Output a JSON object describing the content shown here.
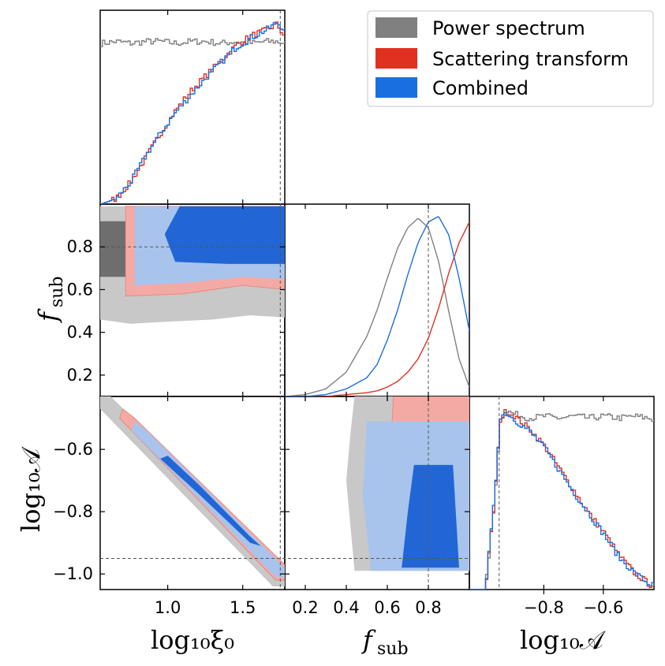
{
  "chart_data": {
    "type": "corner",
    "parameters": [
      "log10xi0",
      "f_sub",
      "log10A"
    ],
    "parameter_labels": {
      "log10xi0": "log₁₀ξ₀",
      "f_sub": "f",
      "f_sub_sub": "sub",
      "log10A": "log₁₀𝒜"
    },
    "true_values": {
      "log10xi0": 1.75,
      "f_sub": 0.8,
      "log10A": -0.95
    },
    "ranges": {
      "log10xi0": [
        0.55,
        1.78
      ],
      "f_sub": [
        0.1,
        1.0
      ],
      "log10A": [
        -1.05,
        -0.43
      ]
    },
    "ticks": {
      "log10xi0": {
        "values": [
          1.0,
          1.5
        ],
        "labels": [
          "1.0",
          "1.5"
        ]
      },
      "f_sub_x": {
        "values": [
          0.2,
          0.4,
          0.6,
          0.8
        ],
        "labels": [
          "0.2",
          "0.4",
          "0.6",
          "0.8"
        ]
      },
      "f_sub_y": {
        "values": [
          0.2,
          0.4,
          0.6,
          0.8
        ],
        "labels": [
          "0.2",
          "0.4",
          "0.6",
          "0.8"
        ]
      },
      "log10A_y": {
        "values": [
          -0.6,
          -0.8,
          -1.0
        ],
        "labels": [
          "−0.6",
          "−0.8",
          "−1.0"
        ]
      },
      "log10A_x": {
        "values": [
          -0.8,
          -0.6
        ],
        "labels": [
          "−0.8",
          "−0.6"
        ]
      }
    },
    "colors": {
      "power": "#808080",
      "scattering": "#e03020",
      "combined": "#1a6fe0",
      "power_dark": "#6e6e6e",
      "power_light": "#c8c8c8",
      "scatter_light": "#f4aaa4",
      "combined_dark": "#2266d6",
      "combined_light": "#a8c4ec"
    },
    "legend": {
      "placement": "top-right",
      "entries": [
        {
          "label": "Power spectrum",
          "color": "#808080"
        },
        {
          "label": "Scattering transform",
          "color": "#e03020"
        },
        {
          "label": "Combined",
          "color": "#1a6fe0"
        }
      ]
    },
    "marginals": {
      "log10xi0": {
        "x": [
          0.55,
          0.65,
          0.75,
          0.85,
          0.95,
          1.05,
          1.15,
          1.25,
          1.35,
          1.45,
          1.55,
          1.65,
          1.72,
          1.78
        ],
        "power": [
          0.85,
          0.86,
          0.85,
          0.86,
          0.86,
          0.85,
          0.86,
          0.86,
          0.85,
          0.86,
          0.85,
          0.86,
          0.86,
          0.85
        ],
        "scattering": [
          0.0,
          0.03,
          0.12,
          0.25,
          0.38,
          0.5,
          0.6,
          0.68,
          0.76,
          0.84,
          0.89,
          0.92,
          0.95,
          0.88
        ],
        "combined": [
          0.0,
          0.03,
          0.12,
          0.26,
          0.38,
          0.49,
          0.58,
          0.67,
          0.75,
          0.83,
          0.88,
          0.92,
          0.96,
          0.92
        ]
      },
      "f_sub": {
        "x": [
          0.1,
          0.2,
          0.3,
          0.4,
          0.5,
          0.55,
          0.6,
          0.65,
          0.7,
          0.75,
          0.8,
          0.85,
          0.9,
          0.95,
          1.0
        ],
        "power": [
          0.0,
          0.01,
          0.04,
          0.13,
          0.32,
          0.46,
          0.63,
          0.79,
          0.9,
          0.95,
          0.9,
          0.72,
          0.45,
          0.2,
          0.05
        ],
        "scattering": [
          0.0,
          0.0,
          0.0,
          0.01,
          0.02,
          0.03,
          0.05,
          0.08,
          0.13,
          0.2,
          0.31,
          0.47,
          0.66,
          0.82,
          0.93
        ],
        "combined": [
          0.0,
          0.0,
          0.01,
          0.04,
          0.1,
          0.17,
          0.3,
          0.46,
          0.65,
          0.82,
          0.93,
          0.96,
          0.86,
          0.63,
          0.35
        ]
      },
      "log10A": {
        "x": [
          -1.05,
          -1.0,
          -0.97,
          -0.95,
          -0.93,
          -0.9,
          -0.85,
          -0.8,
          -0.75,
          -0.7,
          -0.65,
          -0.6,
          -0.55,
          -0.5,
          -0.45,
          -0.43
        ],
        "power": [
          0.0,
          0.0,
          0.45,
          0.9,
          0.95,
          0.93,
          0.91,
          0.92,
          0.91,
          0.92,
          0.91,
          0.92,
          0.91,
          0.92,
          0.91,
          0.9
        ],
        "scattering": [
          0.0,
          0.0,
          0.45,
          0.9,
          0.95,
          0.92,
          0.85,
          0.76,
          0.64,
          0.52,
          0.4,
          0.3,
          0.18,
          0.09,
          0.03,
          0.01
        ],
        "combined": [
          0.0,
          0.0,
          0.47,
          0.92,
          0.94,
          0.9,
          0.84,
          0.75,
          0.63,
          0.51,
          0.4,
          0.29,
          0.17,
          0.09,
          0.03,
          0.02
        ]
      }
    },
    "contours": {
      "fsub_vs_log10xi0": {
        "power": {
          "outer": [
            [
              0.55,
              0.46
            ],
            [
              0.75,
              0.44
            ],
            [
              1.0,
              0.45
            ],
            [
              1.3,
              0.46
            ],
            [
              1.55,
              0.48
            ],
            [
              1.78,
              0.47
            ],
            [
              1.78,
              0.99
            ],
            [
              0.55,
              0.99
            ]
          ],
          "inner": [
            [
              0.55,
              0.66
            ],
            [
              0.82,
              0.66
            ],
            [
              0.82,
              0.92
            ],
            [
              0.55,
              0.92
            ]
          ]
        },
        "scattering": {
          "outer": [
            [
              0.72,
              0.57
            ],
            [
              1.1,
              0.58
            ],
            [
              1.5,
              0.62
            ],
            [
              1.78,
              0.6
            ],
            [
              1.78,
              0.99
            ],
            [
              0.72,
              0.99
            ]
          ]
        },
        "combined": {
          "outer": [
            [
              0.78,
              0.62
            ],
            [
              1.1,
              0.63
            ],
            [
              1.5,
              0.66
            ],
            [
              1.78,
              0.65
            ],
            [
              1.78,
              0.99
            ],
            [
              0.78,
              0.99
            ]
          ],
          "inner": [
            [
              1.05,
              0.73
            ],
            [
              1.4,
              0.72
            ],
            [
              1.78,
              0.72
            ],
            [
              1.78,
              0.99
            ],
            [
              1.08,
              0.99
            ],
            [
              0.98,
              0.86
            ]
          ]
        }
      },
      "log10A_vs_log10xi0": {
        "power": {
          "outer": [
            [
              0.55,
              -0.43
            ],
            [
              0.62,
              -0.43
            ],
            [
              1.78,
              -0.98
            ],
            [
              1.78,
              -1.04
            ],
            [
              1.7,
              -1.04
            ],
            [
              0.55,
              -0.47
            ]
          ]
        },
        "scattering": {
          "outer": [
            [
              0.7,
              -0.47
            ],
            [
              0.78,
              -0.5
            ],
            [
              1.78,
              -0.97
            ],
            [
              1.78,
              -1.02
            ],
            [
              1.72,
              -1.02
            ],
            [
              0.68,
              -0.5
            ]
          ]
        },
        "combined": {
          "outer": [
            [
              0.78,
              -0.51
            ],
            [
              0.86,
              -0.54
            ],
            [
              1.78,
              -0.98
            ],
            [
              1.78,
              -1.01
            ],
            [
              1.72,
              -1.01
            ],
            [
              0.76,
              -0.54
            ]
          ],
          "inner": [
            [
              1.0,
              -0.62
            ],
            [
              1.2,
              -0.71
            ],
            [
              1.55,
              -0.88
            ],
            [
              1.62,
              -0.91
            ],
            [
              1.55,
              -0.9
            ],
            [
              1.2,
              -0.74
            ],
            [
              0.95,
              -0.63
            ]
          ]
        }
      },
      "log10A_vs_fsub": {
        "power": {
          "outer": [
            [
              0.44,
              -0.43
            ],
            [
              1.0,
              -0.43
            ],
            [
              1.0,
              -0.99
            ],
            [
              0.44,
              -0.99
            ],
            [
              0.4,
              -0.7
            ],
            [
              0.42,
              -0.55
            ]
          ],
          "inner": [
            [
              0.72,
              -0.43
            ],
            [
              0.94,
              -0.43
            ],
            [
              0.93,
              -0.5
            ],
            [
              0.72,
              -0.51
            ]
          ]
        },
        "scattering": {
          "outer": [
            [
              0.63,
              -0.43
            ],
            [
              1.0,
              -0.43
            ],
            [
              1.0,
              -0.98
            ],
            [
              0.62,
              -0.98
            ],
            [
              0.6,
              -0.7
            ],
            [
              0.62,
              -0.55
            ]
          ]
        },
        "combined": {
          "outer": [
            [
              0.5,
              -0.51
            ],
            [
              1.0,
              -0.51
            ],
            [
              1.0,
              -0.99
            ],
            [
              0.52,
              -0.99
            ],
            [
              0.48,
              -0.75
            ]
          ],
          "inner": [
            [
              0.73,
              -0.65
            ],
            [
              0.92,
              -0.65
            ],
            [
              0.95,
              -0.98
            ],
            [
              0.67,
              -0.98
            ],
            [
              0.7,
              -0.8
            ]
          ]
        }
      }
    }
  }
}
